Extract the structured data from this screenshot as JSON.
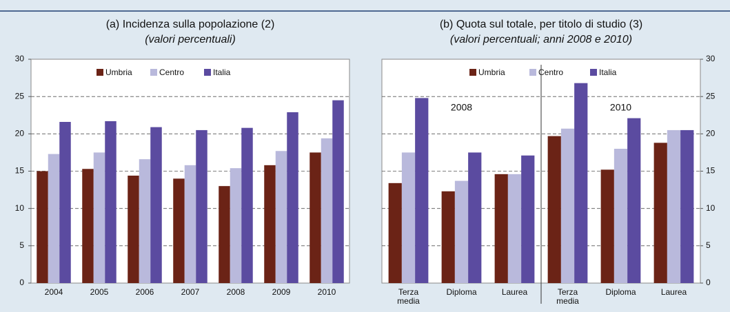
{
  "chart_data": [
    {
      "type": "bar",
      "title": "(a) Incidenza sulla popolazione (2)",
      "subtitle": "(valori percentuali)",
      "categories": [
        "2004",
        "2005",
        "2006",
        "2007",
        "2008",
        "2009",
        "2010"
      ],
      "series": [
        {
          "name": "Umbria",
          "color": "#6b2316",
          "values": [
            15.0,
            15.3,
            14.4,
            14.0,
            13.0,
            15.8,
            17.5
          ]
        },
        {
          "name": "Centro",
          "color": "#b9b9dc",
          "values": [
            17.3,
            17.5,
            16.6,
            15.8,
            15.4,
            17.7,
            19.4
          ]
        },
        {
          "name": "Italia",
          "color": "#5b4ba0",
          "values": [
            21.6,
            21.7,
            20.9,
            20.5,
            20.8,
            22.9,
            24.5
          ]
        }
      ],
      "ylim": [
        0,
        30
      ],
      "yticks": [
        0,
        5,
        10,
        15,
        20,
        25,
        30
      ],
      "grid": true,
      "yaxis_side": "left"
    },
    {
      "type": "bar",
      "title": "(b) Quota sul totale, per titolo di studio (3)",
      "subtitle": "(valori percentuali; anni 2008 e 2010)",
      "categories": [
        "Terza media",
        "Diploma",
        "Laurea",
        "Terza media",
        "Diploma",
        "Laurea"
      ],
      "annotations": [
        "2008",
        "2010"
      ],
      "series": [
        {
          "name": "Umbria",
          "color": "#6b2316",
          "values": [
            13.4,
            12.3,
            14.6,
            19.7,
            15.2,
            18.8
          ]
        },
        {
          "name": "Centro",
          "color": "#b9b9dc",
          "values": [
            17.5,
            13.7,
            14.6,
            20.7,
            18.0,
            20.5
          ]
        },
        {
          "name": "Italia",
          "color": "#5b4ba0",
          "values": [
            24.8,
            17.5,
            17.1,
            26.8,
            22.1,
            20.5
          ]
        }
      ],
      "ylim": [
        0,
        30
      ],
      "yticks": [
        0,
        5,
        10,
        15,
        20,
        25,
        30
      ],
      "grid": true,
      "yaxis_side": "right"
    }
  ]
}
